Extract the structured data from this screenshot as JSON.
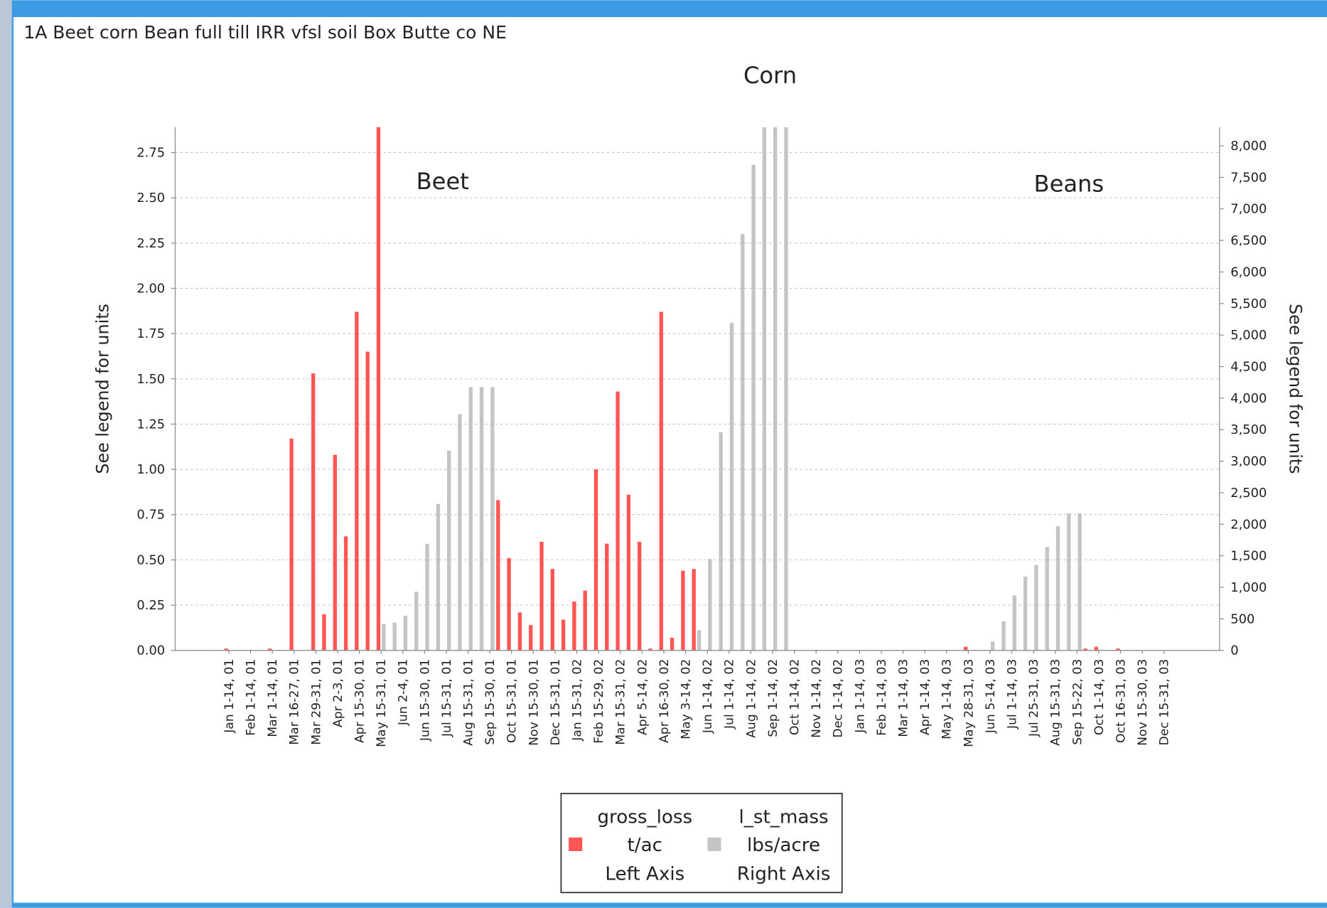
{
  "chart_data": {
    "type": "bar",
    "title": "1A Beet corn Bean full till IRR vfsl soil Box Butte co NE",
    "annotations": [
      "Corn",
      "Beet",
      "Beans"
    ],
    "ylabel": "See legend for units",
    "y2label": "See legend for units",
    "categories": [
      null,
      null,
      null,
      null,
      "Jan 1-14, 01",
      null,
      "Feb 1-14, 01",
      null,
      "Mar 1-14, 01",
      null,
      "Mar 16-27, 01",
      null,
      "Mar 29-31, 01",
      null,
      "Apr 2-3, 01",
      null,
      "Apr 15-30, 01",
      null,
      "May 15-31, 01",
      null,
      "Jun 2-4, 01",
      null,
      "Jun 15-30, 01",
      null,
      "Jul 15-31, 01",
      null,
      "Aug 15-31, 01",
      null,
      "Sep 15-30, 01",
      null,
      "Oct 15-31, 01",
      null,
      "Nov 15-30, 01",
      null,
      "Dec 15-31, 01",
      null,
      "Jan 15-31, 02",
      null,
      "Feb 15-29, 02",
      null,
      "Mar 15-31, 02",
      null,
      "Apr 5-14, 02",
      null,
      "Apr 16-30, 02",
      null,
      "May 3-14, 02",
      null,
      "Jun 1-14, 02",
      null,
      "Jul 1-14, 02",
      null,
      "Aug 1-14, 02",
      null,
      "Sep 1-14, 02",
      null,
      "Oct 1-14, 02",
      null,
      "Nov 1-14, 02",
      null,
      "Dec 1-14, 02",
      null,
      "Jan 1-14, 03",
      null,
      "Feb 1-14, 03",
      null,
      "Mar 1-14, 03",
      null,
      "Apr 1-14, 03",
      null,
      "May 1-14, 03",
      null,
      "May 28-31, 03",
      null,
      "Jun 5-14, 03",
      null,
      "Jul 1-14, 03",
      null,
      "Jul 25-31, 03",
      null,
      "Aug 15-31, 03",
      null,
      "Sep 15-22, 03",
      null,
      "Oct 1-14, 03",
      null,
      "Oct 16-31, 03",
      null,
      "Nov 15-30, 03",
      null,
      "Dec 15-31, 03",
      null
    ],
    "series": [
      {
        "name": "gross_loss",
        "unit": "t/ac",
        "axis_label": "Left Axis",
        "color": "#ff5555",
        "axis": "y",
        "values": [
          0,
          0,
          0,
          0,
          0.01,
          0,
          0,
          0,
          0.01,
          0,
          1.17,
          0,
          1.53,
          0.2,
          1.08,
          0.63,
          1.87,
          1.65,
          2.9,
          0,
          0,
          0,
          0,
          0,
          0,
          0,
          0,
          0,
          0,
          0.83,
          0.51,
          0.21,
          0.14,
          0.6,
          0.45,
          0.17,
          0.27,
          0.33,
          1.0,
          0.59,
          1.43,
          0.86,
          0.6,
          0.01,
          1.87,
          0.07,
          0.44,
          0.45,
          0,
          0,
          0,
          0,
          0,
          0,
          0,
          0,
          0,
          0,
          0,
          0,
          0,
          0,
          0,
          0,
          0,
          0,
          0,
          0,
          0,
          0,
          0,
          0,
          0.02,
          0,
          0,
          0,
          0,
          0,
          0,
          0,
          0,
          0,
          0,
          0.01,
          0.02,
          0,
          0.01,
          0,
          0,
          0,
          0,
          0
        ]
      },
      {
        "name": "l_st_mass",
        "unit": "lbs/acre",
        "axis_label": "Right Axis",
        "color": "#c4c4c4",
        "axis": "y2",
        "values": [
          0,
          0,
          0,
          0,
          0,
          0,
          0,
          0,
          0,
          0,
          0,
          0,
          0,
          0,
          0,
          0,
          0,
          0,
          420,
          440,
          550,
          930,
          1690,
          2320,
          3170,
          3745,
          4175,
          4175,
          4175,
          0,
          0,
          0,
          0,
          0,
          0,
          0,
          0,
          0,
          0,
          0,
          0,
          0,
          0,
          0,
          0,
          0,
          0,
          320,
          1450,
          3460,
          5195,
          6600,
          7700,
          8295,
          8295,
          8295,
          0,
          0,
          0,
          0,
          0,
          0,
          0,
          0,
          0,
          0,
          0,
          0,
          0,
          0,
          0,
          0,
          0,
          0,
          140,
          460,
          870,
          1170,
          1355,
          1640,
          1970,
          2175,
          2175,
          0,
          0,
          0,
          0,
          0,
          0,
          0,
          0,
          0
        ]
      }
    ],
    "ylim": [
      0,
      2.89
    ],
    "yticks": [
      {
        "value": 0,
        "label": "0.00"
      },
      0.25,
      {
        "value": 0.5,
        "label": "0.50"
      },
      0.75,
      {
        "value": 1,
        "label": "1.00"
      },
      1.25,
      {
        "value": 1.5,
        "label": "1.50"
      },
      1.75,
      {
        "value": 2,
        "label": "2.00"
      },
      2.25,
      {
        "value": 2.5,
        "label": "2.50"
      },
      2.75
    ],
    "y2lim": [
      0,
      8295
    ],
    "y2ticks": [
      0,
      500,
      {
        "value": 1000,
        "label": "1,000"
      },
      {
        "value": 1500,
        "label": "1,500"
      },
      {
        "value": 2000,
        "label": "2,000"
      },
      {
        "value": 2500,
        "label": "2,500"
      },
      {
        "value": 3000,
        "label": "3,000"
      },
      {
        "value": 3500,
        "label": "3,500"
      },
      {
        "value": 4000,
        "label": "4,000"
      },
      {
        "value": 4500,
        "label": "4,500"
      },
      {
        "value": 5000,
        "label": "5,000"
      },
      {
        "value": 5500,
        "label": "5,500"
      },
      {
        "value": 6000,
        "label": "6,000"
      },
      {
        "value": 6500,
        "label": "6,500"
      },
      {
        "value": 7000,
        "label": "7,000"
      },
      {
        "value": 7500,
        "label": "7,500"
      },
      {
        "value": 8000,
        "label": "8,000"
      }
    ],
    "grid": true,
    "legend": "bottom"
  }
}
